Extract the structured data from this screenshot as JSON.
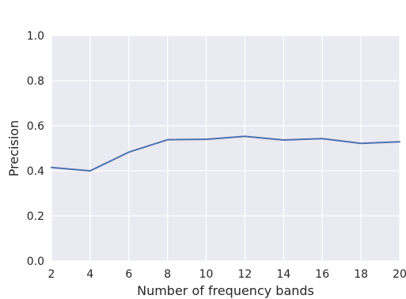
{
  "chart_data": {
    "type": "line",
    "title": "",
    "xlabel": "Number of frequency bands",
    "ylabel": "Precision",
    "x": [
      2,
      4,
      6,
      8,
      10,
      12,
      14,
      16,
      18,
      20
    ],
    "series": [
      {
        "values": [
          0.415,
          0.4,
          0.483,
          0.538,
          0.54,
          0.553,
          0.537,
          0.543,
          0.522,
          0.529
        ]
      }
    ],
    "xlim": [
      2,
      20
    ],
    "ylim": [
      0,
      1
    ],
    "xticks": [
      2,
      4,
      6,
      8,
      10,
      12,
      14,
      16,
      18,
      20
    ],
    "yticks": [
      0.0,
      0.2,
      0.4,
      0.6,
      0.8,
      1.0
    ],
    "xtick_labels": [
      "2",
      "4",
      "6",
      "8",
      "10",
      "12",
      "14",
      "16",
      "18",
      "20"
    ],
    "ytick_labels": [
      "0.0",
      "0.2",
      "0.4",
      "0.6",
      "0.8",
      "1.0"
    ],
    "grid": true,
    "line_color": "#4c72b0",
    "plot_background": "#eaeaf2",
    "grid_color": "#ffffff"
  }
}
